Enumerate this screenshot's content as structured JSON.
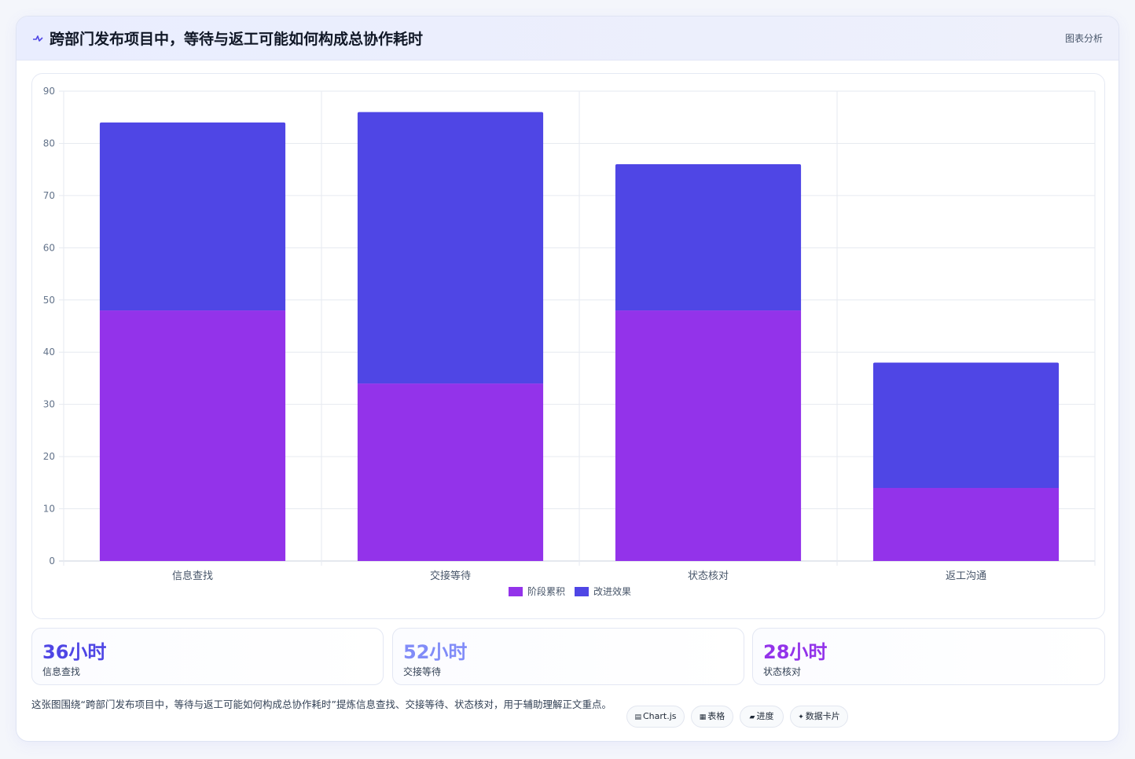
{
  "header": {
    "icon": "pulse-line-icon",
    "title": "跨部门发布项目中，等待与返工可能如何构成总协作耗时",
    "tag": "图表分析"
  },
  "chart_data": {
    "type": "bar",
    "stacked": true,
    "categories": [
      "信息查找",
      "交接等待",
      "状态核对",
      "返工沟通"
    ],
    "series": [
      {
        "name": "阶段累积",
        "values": [
          48,
          34,
          48,
          14
        ],
        "color": "#9333ea"
      },
      {
        "name": "改进效果",
        "values": [
          36,
          52,
          28,
          24
        ],
        "color": "#4f46e5"
      }
    ],
    "ylim": [
      0,
      90
    ],
    "yticks": [
      0,
      10,
      20,
      30,
      40,
      50,
      60,
      70,
      80,
      90
    ],
    "grid": true,
    "legend": "bottom"
  },
  "stats": [
    {
      "value": "36小时",
      "label": "信息查找",
      "color": "#4f46e5"
    },
    {
      "value": "52小时",
      "label": "交接等待",
      "color": "#818cf8"
    },
    {
      "value": "28小时",
      "label": "状态核对",
      "color": "#9333ea"
    }
  ],
  "note": "这张图围绕“跨部门发布项目中，等待与返工可能如何构成总协作耗时”提炼信息查找、交接等待、状态核对，用于辅助理解正文重点。",
  "pills": [
    {
      "icon": "▤",
      "label": "Chart.js"
    },
    {
      "icon": "▦",
      "label": "表格"
    },
    {
      "icon": "▰",
      "label": "进度"
    },
    {
      "icon": "✦",
      "label": "数据卡片"
    }
  ]
}
